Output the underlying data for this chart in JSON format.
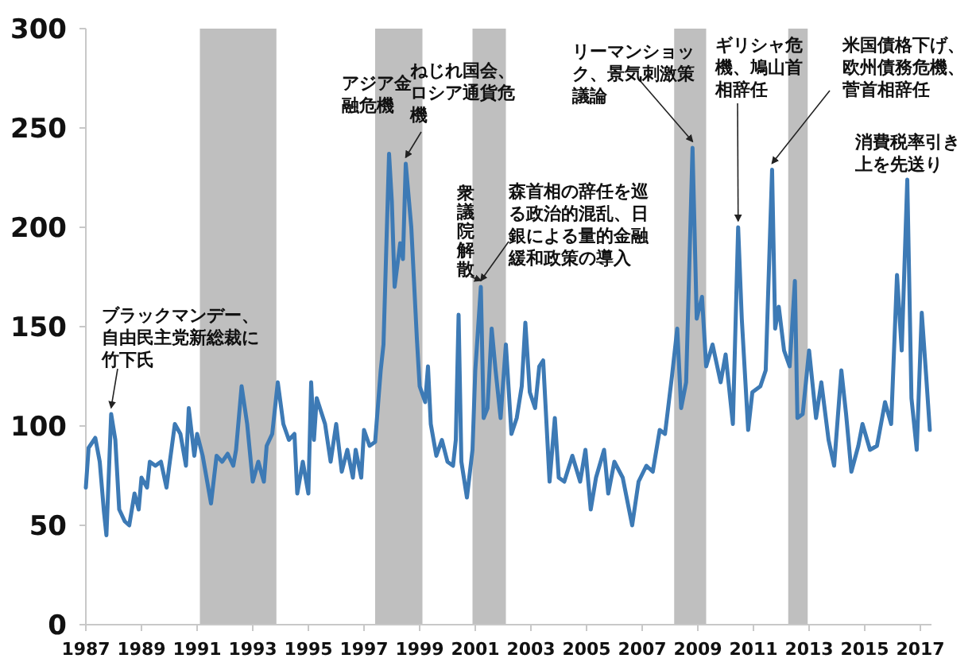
{
  "chart_data": {
    "type": "line",
    "xlim": [
      1987,
      2017.4
    ],
    "ylim": [
      0,
      300
    ],
    "xticks": [
      1987,
      1989,
      1991,
      1993,
      1995,
      1997,
      1999,
      2001,
      2003,
      2005,
      2007,
      2009,
      2011,
      2013,
      2015,
      2017
    ],
    "yticks": [
      0,
      50,
      100,
      150,
      200,
      250,
      300
    ],
    "bands": [
      {
        "axis": "x",
        "from": 1991.1,
        "to": 1993.85,
        "color": "#bfbfbf"
      },
      {
        "axis": "x",
        "from": 1997.4,
        "to": 1999.1,
        "color": "#bfbfbf"
      },
      {
        "axis": "x",
        "from": 2000.9,
        "to": 2002.1,
        "color": "#bfbfbf"
      },
      {
        "axis": "x",
        "from": 2008.15,
        "to": 2009.3,
        "color": "#bfbfbf"
      },
      {
        "axis": "x",
        "from": 2012.25,
        "to": 2012.95,
        "color": "#bfbfbf"
      }
    ],
    "series": [
      {
        "color": "#3d7ab5",
        "x": [
          1987.0,
          1987.1,
          1987.34,
          1987.5,
          1987.65,
          1987.74,
          1987.91,
          1988.06,
          1988.2,
          1988.4,
          1988.56,
          1988.75,
          1988.9,
          1989.0,
          1989.2,
          1989.3,
          1989.5,
          1989.7,
          1989.9,
          1990.0,
          1990.2,
          1990.4,
          1990.6,
          1990.7,
          1990.9,
          1991.0,
          1991.2,
          1991.5,
          1991.7,
          1991.9,
          1992.1,
          1992.3,
          1992.4,
          1992.6,
          1992.8,
          1993.0,
          1993.2,
          1993.4,
          1993.5,
          1993.7,
          1993.9,
          1994.1,
          1994.3,
          1994.5,
          1994.6,
          1994.8,
          1995.0,
          1995.1,
          1995.2,
          1995.3,
          1995.6,
          1995.8,
          1996.0,
          1996.2,
          1996.4,
          1996.6,
          1996.7,
          1996.9,
          1997.0,
          1997.2,
          1997.4,
          1997.6,
          1997.7,
          1997.9,
          1998.0,
          1998.1,
          1998.3,
          1998.4,
          1998.5,
          1998.7,
          1998.9,
          1999.0,
          1999.2,
          1999.3,
          1999.4,
          1999.6,
          1999.8,
          2000.0,
          2000.2,
          2000.3,
          2000.4,
          2000.5,
          2000.7,
          2000.9,
          2001.0,
          2001.2,
          2001.3,
          2001.44,
          2001.59,
          2001.73,
          2001.91,
          2002.1,
          2002.3,
          2002.49,
          2002.67,
          2002.8,
          2002.96,
          2003.15,
          2003.3,
          2003.44,
          2003.67,
          2003.86,
          2004.0,
          2004.2,
          2004.49,
          2004.77,
          2004.96,
          2005.15,
          2005.34,
          2005.63,
          2005.78,
          2006.0,
          2006.3,
          2006.64,
          2006.87,
          2007.15,
          2007.38,
          2007.63,
          2007.82,
          2008.07,
          2008.26,
          2008.4,
          2008.58,
          2008.81,
          2008.96,
          2009.15,
          2009.3,
          2009.53,
          2009.82,
          2010.0,
          2010.26,
          2010.45,
          2010.58,
          2010.81,
          2010.96,
          2011.25,
          2011.44,
          2011.67,
          2011.78,
          2011.91,
          2012.1,
          2012.3,
          2012.49,
          2012.58,
          2012.77,
          2013.0,
          2013.25,
          2013.44,
          2013.7,
          2013.9,
          2014.16,
          2014.33,
          2014.52,
          2014.77,
          2014.92,
          2015.19,
          2015.44,
          2015.73,
          2015.95,
          2016.16,
          2016.33,
          2016.53,
          2016.68,
          2016.87,
          2017.05,
          2017.21,
          2017.34
        ],
        "values": [
          69,
          89,
          94,
          82,
          57,
          45,
          106,
          93,
          58,
          52,
          50,
          66,
          58,
          74,
          69,
          82,
          80,
          82,
          69,
          80,
          101,
          96,
          80,
          109,
          85,
          96,
          85,
          61,
          85,
          82,
          86,
          80,
          88,
          120,
          101,
          72,
          82,
          72,
          90,
          96,
          122,
          101,
          93,
          96,
          66,
          82,
          66,
          122,
          93,
          114,
          101,
          82,
          101,
          77,
          88,
          74,
          88,
          74,
          98,
          90,
          92,
          128,
          141,
          237,
          213,
          170,
          192,
          184,
          232,
          200,
          144,
          120,
          112,
          130,
          101,
          85,
          93,
          82,
          80,
          93,
          156,
          82,
          64,
          88,
          128,
          170,
          104,
          109,
          149,
          128,
          104,
          141,
          96,
          104,
          120,
          152,
          117,
          109,
          130,
          133,
          72,
          104,
          74,
          72,
          85,
          72,
          88,
          58,
          74,
          88,
          66,
          82,
          74,
          50,
          72,
          80,
          77,
          98,
          96,
          125,
          149,
          109,
          122,
          240,
          154,
          165,
          130,
          141,
          122,
          136,
          101,
          200,
          154,
          98,
          117,
          120,
          128,
          229,
          149,
          160,
          138,
          130,
          173,
          104,
          106,
          138,
          104,
          122,
          93,
          80,
          128,
          106,
          77,
          90,
          101,
          88,
          90,
          112,
          101,
          176,
          138,
          224,
          114,
          88,
          157,
          125,
          98
        ]
      }
    ],
    "annotations": [
      {
        "text": "ブラックマンデー、自由民主党新総裁に竹下氏",
        "x": 1987.91,
        "y": 106
      },
      {
        "text": "アジア金融危機",
        "x": 1997.9,
        "y": 237
      },
      {
        "text": "ねじれ国会、ロシア通貨危機",
        "x": 1998.5,
        "y": 232
      },
      {
        "text": "衆議院解散",
        "x": 2001.2,
        "y": 170
      },
      {
        "text": "森首相の辞任を巡る政治的混乱、日銀による量的金融緩和政策の導入",
        "x": 2001.2,
        "y": 170
      },
      {
        "text": "リーマンショック、景気刺激策議論",
        "x": 2008.81,
        "y": 240
      },
      {
        "text": "ギリシャ危機、鳩山首相辞任",
        "x": 2010.45,
        "y": 200
      },
      {
        "text": "米国債格下げ、欧州債務危機、菅首相辞任",
        "x": 2011.67,
        "y": 229
      },
      {
        "text": "消費税率引き上を先送り",
        "x": 2016.53,
        "y": 224
      }
    ]
  }
}
